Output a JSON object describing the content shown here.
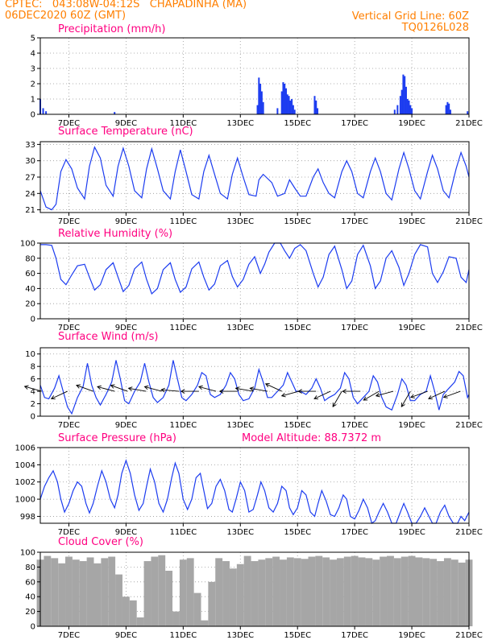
{
  "header": {
    "line1_left": "CPTEC:   043:08W-04:12S   CHAPADINHA (MA)",
    "line2_left": "06DEC2020 60Z (GMT)",
    "line1_right": "Vertical Grid Line: 60Z",
    "line2_right": "TQ0126L028"
  },
  "colors": {
    "header": "#ff7f00",
    "title": "#ff0080",
    "series": "#1c3cf0",
    "bars": "#1c3cf0",
    "cloud": "#a6a6a6",
    "grid": "#999999"
  },
  "x_axis": {
    "start_day": 6.0,
    "end_day": 21.0,
    "tick_days": [
      7,
      9,
      11,
      13,
      15,
      17,
      19,
      21
    ],
    "tick_labels": [
      "7DEC",
      "9DEC",
      "11DEC",
      "13DEC",
      "15DEC",
      "17DEC",
      "19DEC",
      "21DEC"
    ]
  },
  "chart_data": [
    {
      "type": "bar",
      "title": "Precipitation (mm/h)",
      "ylim": [
        0,
        5
      ],
      "y_ticks": [
        0,
        1,
        2,
        3,
        4,
        5
      ],
      "grid": true,
      "x": [
        6.0,
        6.1,
        6.2,
        8.6,
        13.6,
        13.65,
        13.7,
        13.75,
        13.8,
        14.3,
        14.45,
        14.5,
        14.55,
        14.6,
        14.65,
        14.7,
        14.75,
        14.8,
        14.85,
        14.9,
        15.6,
        15.65,
        15.7,
        18.4,
        18.5,
        18.6,
        18.65,
        18.7,
        18.75,
        18.8,
        18.85,
        18.9,
        18.95,
        19.0,
        20.2,
        20.25,
        20.3,
        20.35,
        20.95
      ],
      "values": [
        1.0,
        0.4,
        0.2,
        0.15,
        0.6,
        2.4,
        2.0,
        1.5,
        0.8,
        0.4,
        1.5,
        2.1,
        2.0,
        1.7,
        1.3,
        1.2,
        0.9,
        1.0,
        0.6,
        0.3,
        1.2,
        0.9,
        0.4,
        0.3,
        0.6,
        1.2,
        1.6,
        2.6,
        2.5,
        1.8,
        1.0,
        0.9,
        0.6,
        0.4,
        0.6,
        0.8,
        0.7,
        0.3,
        0.2
      ]
    },
    {
      "type": "line",
      "title": "Surface Temperature (nC)",
      "ylim": [
        20.5,
        33.5
      ],
      "y_ticks": [
        21,
        24,
        27,
        30,
        33
      ],
      "grid": true,
      "series": [
        {
          "x": [
            6.0,
            6.2,
            6.4,
            6.55,
            6.72,
            6.9,
            7.1,
            7.3,
            7.55,
            7.72,
            7.9,
            8.1,
            8.3,
            8.55,
            8.72,
            8.9,
            9.1,
            9.3,
            9.55,
            9.72,
            9.9,
            10.1,
            10.3,
            10.55,
            10.72,
            10.9,
            11.1,
            11.3,
            11.55,
            11.72,
            11.9,
            12.1,
            12.3,
            12.55,
            12.72,
            12.9,
            13.1,
            13.3,
            13.55,
            13.65,
            13.8,
            13.9,
            14.1,
            14.3,
            14.55,
            14.72,
            14.9,
            15.1,
            15.3,
            15.55,
            15.72,
            15.9,
            16.1,
            16.3,
            16.55,
            16.72,
            16.9,
            17.1,
            17.3,
            17.55,
            17.72,
            17.9,
            18.1,
            18.3,
            18.55,
            18.72,
            18.9,
            19.1,
            19.3,
            19.55,
            19.72,
            19.9,
            20.1,
            20.3,
            20.55,
            20.72,
            20.9,
            21.0
          ],
          "values": [
            24.5,
            21.5,
            21.0,
            22.0,
            28.0,
            30.2,
            28.5,
            25.0,
            23.0,
            29.0,
            32.5,
            30.5,
            25.5,
            23.5,
            29.0,
            32.3,
            29.0,
            24.5,
            23.2,
            28.5,
            32.2,
            28.5,
            24.5,
            23.0,
            28.0,
            32.0,
            28.0,
            23.8,
            23.0,
            28.0,
            31.0,
            27.5,
            24.0,
            23.0,
            27.5,
            30.5,
            27.0,
            23.8,
            23.5,
            26.5,
            27.5,
            27.0,
            26.0,
            23.5,
            24.0,
            26.5,
            25.0,
            23.5,
            23.5,
            27.0,
            28.5,
            26.0,
            24.0,
            23.2,
            28.0,
            30.0,
            28.0,
            24.0,
            23.2,
            28.0,
            30.5,
            28.0,
            24.0,
            22.8,
            28.5,
            31.5,
            28.5,
            24.5,
            23.0,
            28.0,
            31.0,
            28.5,
            24.5,
            23.2,
            28.5,
            31.5,
            29.0,
            27.0
          ]
        }
      ]
    },
    {
      "type": "line",
      "title": "Relative Humidity (%)",
      "ylim": [
        0,
        100
      ],
      "y_ticks": [
        0,
        20,
        40,
        60,
        80,
        100
      ],
      "grid": true,
      "series": [
        {
          "x": [
            6.0,
            6.2,
            6.4,
            6.55,
            6.72,
            6.9,
            7.1,
            7.3,
            7.55,
            7.72,
            7.9,
            8.1,
            8.3,
            8.55,
            8.72,
            8.9,
            9.1,
            9.3,
            9.55,
            9.72,
            9.9,
            10.1,
            10.3,
            10.55,
            10.72,
            10.9,
            11.1,
            11.3,
            11.55,
            11.72,
            11.9,
            12.1,
            12.3,
            12.55,
            12.72,
            12.9,
            13.1,
            13.3,
            13.5,
            13.7,
            13.85,
            14.0,
            14.2,
            14.4,
            14.55,
            14.72,
            14.9,
            15.1,
            15.3,
            15.55,
            15.72,
            15.9,
            16.1,
            16.3,
            16.55,
            16.72,
            16.9,
            17.1,
            17.3,
            17.55,
            17.72,
            17.9,
            18.1,
            18.3,
            18.55,
            18.72,
            18.9,
            19.1,
            19.3,
            19.55,
            19.72,
            19.9,
            20.1,
            20.3,
            20.55,
            20.72,
            20.9,
            21.0
          ],
          "values": [
            98,
            98,
            97,
            80,
            52,
            45,
            58,
            70,
            72,
            55,
            38,
            45,
            65,
            74,
            55,
            36,
            44,
            66,
            75,
            52,
            33,
            40,
            65,
            74,
            52,
            35,
            42,
            66,
            75,
            55,
            38,
            46,
            70,
            77,
            56,
            42,
            52,
            72,
            82,
            60,
            72,
            88,
            100,
            100,
            90,
            80,
            93,
            98,
            90,
            60,
            42,
            55,
            85,
            96,
            65,
            40,
            50,
            85,
            97,
            70,
            40,
            50,
            80,
            90,
            68,
            44,
            60,
            85,
            98,
            95,
            60,
            48,
            62,
            82,
            80,
            55,
            48,
            65
          ]
        }
      ]
    },
    {
      "type": "line",
      "title": "Surface Wind (m/s)",
      "ylim": [
        0,
        11
      ],
      "y_ticks": [
        0,
        2,
        4,
        6,
        8,
        10
      ],
      "grid": true,
      "series": [
        {
          "x": [
            6.0,
            6.15,
            6.3,
            6.5,
            6.65,
            6.8,
            6.95,
            7.1,
            7.3,
            7.5,
            7.65,
            7.8,
            7.95,
            8.1,
            8.3,
            8.5,
            8.65,
            8.8,
            8.95,
            9.1,
            9.3,
            9.5,
            9.65,
            9.8,
            9.95,
            10.1,
            10.3,
            10.5,
            10.65,
            10.8,
            10.95,
            11.1,
            11.3,
            11.5,
            11.65,
            11.8,
            11.95,
            12.1,
            12.3,
            12.5,
            12.65,
            12.8,
            12.95,
            13.1,
            13.3,
            13.5,
            13.65,
            13.8,
            13.95,
            14.1,
            14.3,
            14.5,
            14.65,
            14.8,
            14.95,
            15.1,
            15.3,
            15.5,
            15.65,
            15.8,
            15.95,
            16.1,
            16.3,
            16.5,
            16.65,
            16.8,
            16.95,
            17.1,
            17.3,
            17.5,
            17.65,
            17.8,
            17.95,
            18.1,
            18.3,
            18.5,
            18.65,
            18.8,
            18.95,
            19.1,
            19.3,
            19.5,
            19.65,
            19.8,
            19.95,
            20.1,
            20.3,
            20.5,
            20.65,
            20.8,
            20.95,
            21.0
          ],
          "values": [
            5.0,
            3.0,
            2.8,
            4.5,
            6.5,
            4.0,
            1.5,
            0.4,
            3.0,
            4.8,
            8.5,
            5.0,
            3.0,
            1.8,
            3.5,
            5.5,
            9.0,
            6.0,
            2.5,
            2.0,
            4.0,
            5.5,
            8.5,
            5.5,
            3.0,
            2.2,
            3.0,
            5.0,
            9.0,
            6.0,
            3.0,
            2.5,
            3.5,
            5.0,
            7.0,
            6.5,
            3.5,
            3.0,
            3.5,
            5.0,
            7.0,
            6.0,
            3.5,
            2.5,
            2.8,
            4.5,
            7.5,
            5.5,
            3.0,
            3.0,
            4.0,
            5.0,
            7.0,
            5.5,
            4.0,
            4.0,
            3.5,
            4.5,
            6.0,
            4.5,
            2.5,
            3.0,
            3.5,
            4.5,
            7.0,
            6.0,
            3.0,
            2.0,
            3.0,
            4.0,
            6.5,
            5.5,
            3.0,
            1.5,
            1.0,
            3.5,
            6.0,
            5.0,
            2.5,
            2.5,
            3.5,
            4.0,
            6.5,
            4.0,
            1.0,
            3.5,
            4.5,
            5.5,
            7.2,
            6.5,
            3.0,
            3.5
          ]
        }
      ],
      "wind_arrows": [
        {
          "x": 6.05,
          "angle": 196
        },
        {
          "x": 6.95,
          "angle": 155
        },
        {
          "x": 7.85,
          "angle": 200
        },
        {
          "x": 8.6,
          "angle": 195
        },
        {
          "x": 9.05,
          "angle": 200
        },
        {
          "x": 9.7,
          "angle": 190
        },
        {
          "x": 10.25,
          "angle": 195
        },
        {
          "x": 10.85,
          "angle": 185
        },
        {
          "x": 11.55,
          "angle": 180
        },
        {
          "x": 12.15,
          "angle": 195
        },
        {
          "x": 12.9,
          "angle": 180
        },
        {
          "x": 13.45,
          "angle": 190
        },
        {
          "x": 13.95,
          "angle": 190
        },
        {
          "x": 14.45,
          "angle": 205
        },
        {
          "x": 15.05,
          "angle": 165
        },
        {
          "x": 15.65,
          "angle": 180
        },
        {
          "x": 16.15,
          "angle": 155
        },
        {
          "x": 16.55,
          "angle": 120
        },
        {
          "x": 17.2,
          "angle": 180
        },
        {
          "x": 17.85,
          "angle": 150
        },
        {
          "x": 18.35,
          "angle": 165
        },
        {
          "x": 18.95,
          "angle": 120
        },
        {
          "x": 19.55,
          "angle": 160
        },
        {
          "x": 20.15,
          "angle": 155
        },
        {
          "x": 20.7,
          "angle": 160
        }
      ]
    },
    {
      "type": "line",
      "title": "Surface Pressure (hPa)",
      "annotation": "Model Altitude: 88.7372 m",
      "ylim": [
        997.2,
        1006
      ],
      "y_ticks": [
        998,
        1000,
        1002,
        1004,
        1006
      ],
      "grid": true,
      "series": [
        {
          "x": [
            6.0,
            6.15,
            6.3,
            6.45,
            6.6,
            6.72,
            6.85,
            7.0,
            7.15,
            7.3,
            7.45,
            7.6,
            7.72,
            7.85,
            8.0,
            8.15,
            8.3,
            8.45,
            8.6,
            8.72,
            8.85,
            9.0,
            9.15,
            9.3,
            9.45,
            9.6,
            9.72,
            9.85,
            10.0,
            10.15,
            10.3,
            10.45,
            10.6,
            10.72,
            10.85,
            11.0,
            11.15,
            11.3,
            11.45,
            11.6,
            11.72,
            11.85,
            12.0,
            12.15,
            12.3,
            12.45,
            12.6,
            12.72,
            12.85,
            13.0,
            13.15,
            13.3,
            13.45,
            13.6,
            13.72,
            13.85,
            14.0,
            14.15,
            14.3,
            14.45,
            14.6,
            14.72,
            14.85,
            15.0,
            15.15,
            15.3,
            15.45,
            15.6,
            15.72,
            15.85,
            16.0,
            16.15,
            16.3,
            16.45,
            16.6,
            16.72,
            16.85,
            17.0,
            17.15,
            17.3,
            17.45,
            17.6,
            17.72,
            17.85,
            18.0,
            18.15,
            18.3,
            18.45,
            18.6,
            18.72,
            18.85,
            19.0,
            19.15,
            19.3,
            19.45,
            19.6,
            19.72,
            19.85,
            20.0,
            20.15,
            20.3,
            20.45,
            20.6,
            20.72,
            20.85,
            21.0
          ],
          "values": [
            1000.0,
            1001.5,
            1002.5,
            1003.3,
            1002.0,
            1000.0,
            998.5,
            999.5,
            1001.0,
            1002.0,
            1001.5,
            999.5,
            998.4,
            999.5,
            1001.5,
            1003.3,
            1002.0,
            1000.0,
            999.0,
            1000.5,
            1003.0,
            1004.5,
            1003.0,
            1000.5,
            998.7,
            999.5,
            1001.5,
            1003.5,
            1002.0,
            999.5,
            998.5,
            1000.0,
            1002.5,
            1004.2,
            1003.0,
            1000.0,
            998.8,
            1000.0,
            1002.5,
            1003.0,
            1001.0,
            998.9,
            999.5,
            1001.5,
            1002.3,
            1001.0,
            998.8,
            998.5,
            1000.0,
            1002.0,
            1001.0,
            998.5,
            998.8,
            1000.5,
            1002.0,
            1001.0,
            999.0,
            998.5,
            999.5,
            1001.5,
            1001.0,
            999.0,
            998.2,
            999.0,
            1001.0,
            1000.5,
            998.5,
            998.0,
            999.5,
            1001.0,
            999.8,
            998.2,
            998.0,
            999.0,
            1000.5,
            1000.0,
            998.0,
            997.7,
            998.7,
            1000.0,
            999.0,
            997.2,
            997.5,
            998.5,
            999.5,
            998.5,
            997.0,
            997.2,
            998.5,
            999.5,
            998.5,
            997.0,
            997.0,
            998.0,
            999.0,
            998.0,
            996.8,
            997.0,
            998.5,
            999.3,
            998.0,
            996.8,
            997.0,
            998.0,
            997.5,
            998.5
          ]
        }
      ]
    },
    {
      "type": "area",
      "title": "Cloud Cover (%)",
      "ylim": [
        0,
        100
      ],
      "y_ticks": [
        0,
        20,
        40,
        60,
        80,
        100
      ],
      "grid": true,
      "x": [
        6.0,
        6.25,
        6.5,
        6.75,
        7.0,
        7.25,
        7.5,
        7.75,
        8.0,
        8.25,
        8.5,
        8.75,
        9.0,
        9.25,
        9.5,
        9.75,
        10.0,
        10.25,
        10.5,
        10.75,
        11.0,
        11.25,
        11.5,
        11.75,
        12.0,
        12.25,
        12.5,
        12.75,
        13.0,
        13.25,
        13.5,
        13.75,
        14.0,
        14.25,
        14.5,
        14.75,
        15.0,
        15.25,
        15.5,
        15.75,
        16.0,
        16.25,
        16.5,
        16.75,
        17.0,
        17.25,
        17.5,
        17.75,
        18.0,
        18.25,
        18.5,
        18.75,
        19.0,
        19.25,
        19.5,
        19.75,
        20.0,
        20.25,
        20.5,
        20.75,
        21.0
      ],
      "values": [
        90,
        95,
        92,
        85,
        94,
        90,
        88,
        93,
        85,
        92,
        94,
        70,
        40,
        35,
        12,
        88,
        94,
        96,
        75,
        20,
        90,
        92,
        45,
        8,
        60,
        92,
        88,
        78,
        84,
        95,
        88,
        90,
        92,
        94,
        90,
        93,
        92,
        91,
        94,
        95,
        93,
        90,
        92,
        94,
        95,
        93,
        92,
        90,
        94,
        95,
        92,
        94,
        95,
        93,
        92,
        91,
        88,
        92,
        90,
        86,
        90
      ]
    }
  ]
}
